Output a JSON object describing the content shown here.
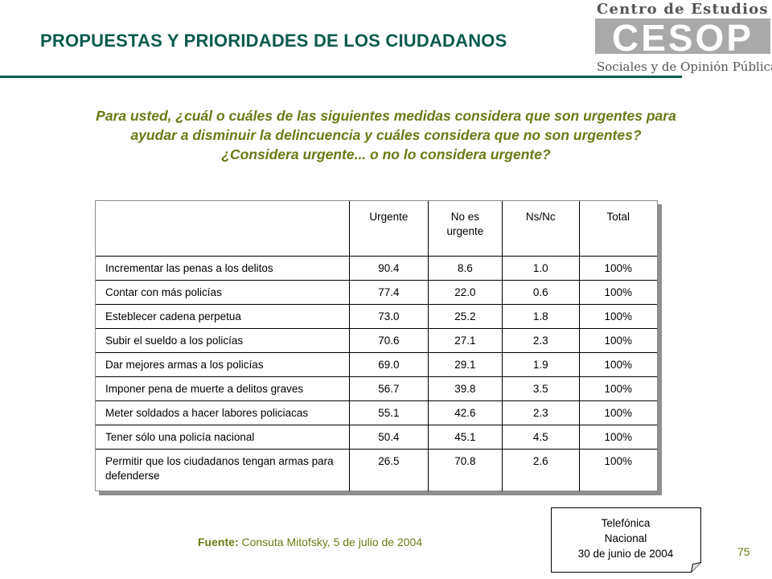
{
  "header": {
    "title": "PROPUESTAS Y PRIORIDADES DE LOS CIUDADANOS"
  },
  "logo": {
    "top_text": "Centro de Estudios",
    "mark": "CESOP",
    "bottom_text": "Sociales y de Opinión Pública"
  },
  "question": {
    "line1": "Para usted, ¿cuál o cuáles de las siguientes medidas considera que son urgentes para",
    "line2": "ayudar a disminuir la delincuencia y cuáles considera que no son urgentes?",
    "line3": "¿Considera urgente... o no lo considera urgente?"
  },
  "table": {
    "headers": [
      "",
      "Urgente",
      "No es urgente",
      "Ns/Nc",
      "Total"
    ],
    "rows": [
      {
        "label": "Incrementar las penas a los delitos",
        "urgente": "90.4",
        "no_urgente": "8.6",
        "nsnc": "1.0",
        "total": "100%"
      },
      {
        "label": "Contar con más policías",
        "urgente": "77.4",
        "no_urgente": "22.0",
        "nsnc": "0.6",
        "total": "100%"
      },
      {
        "label": "Esteblecer cadena perpetua",
        "urgente": "73.0",
        "no_urgente": "25.2",
        "nsnc": "1.8",
        "total": "100%"
      },
      {
        "label": "Subir el sueldo a los policías",
        "urgente": "70.6",
        "no_urgente": "27.1",
        "nsnc": "2.3",
        "total": "100%"
      },
      {
        "label": "Dar mejores armas a los policías",
        "urgente": "69.0",
        "no_urgente": "29.1",
        "nsnc": "1.9",
        "total": "100%"
      },
      {
        "label": "Imponer pena de muerte a delitos graves",
        "urgente": "56.7",
        "no_urgente": "39.8",
        "nsnc": "3.5",
        "total": "100%"
      },
      {
        "label": "Meter soldados a hacer labores policiacas",
        "urgente": "55.1",
        "no_urgente": "42.6",
        "nsnc": "2.3",
        "total": "100%"
      },
      {
        "label": "Tener sólo una policía nacional",
        "urgente": "50.4",
        "no_urgente": "45.1",
        "nsnc": "4.5",
        "total": "100%"
      },
      {
        "label": "Permitir que los ciudadanos tengan armas para defenderse",
        "urgente": "26.5",
        "no_urgente": "70.8",
        "nsnc": "2.6",
        "total": "100%"
      }
    ]
  },
  "footer": {
    "fuente_label": "Fuente:",
    "fuente_text": " Consuta Mitofsky, 5 de julio de 2004",
    "note_line1": "Telefónica",
    "note_line2": "Nacional",
    "note_line3": "30 de junio de 2004",
    "page_number": "75"
  },
  "colors": {
    "title": "#0b5a4e",
    "question": "#6b7a14",
    "logo_gray": "#8c8c8c"
  }
}
